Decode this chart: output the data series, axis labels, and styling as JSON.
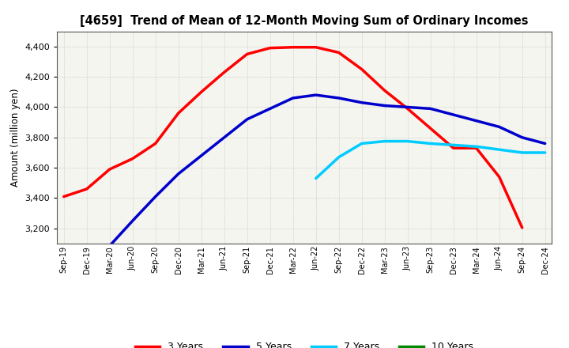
{
  "title": "[4659]  Trend of Mean of 12-Month Moving Sum of Ordinary Incomes",
  "ylabel": "Amount (million yen)",
  "ylim": [
    3100,
    4500
  ],
  "yticks": [
    3200,
    3400,
    3600,
    3800,
    4000,
    4200,
    4400
  ],
  "x_labels": [
    "Sep-19",
    "Dec-19",
    "Mar-20",
    "Jun-20",
    "Sep-20",
    "Dec-20",
    "Mar-21",
    "Jun-21",
    "Sep-21",
    "Dec-21",
    "Mar-22",
    "Jun-22",
    "Sep-22",
    "Dec-22",
    "Mar-23",
    "Jun-23",
    "Sep-23",
    "Dec-23",
    "Mar-24",
    "Jun-24",
    "Sep-24",
    "Dec-24"
  ],
  "series": {
    "3 Years": {
      "color": "#ff0000",
      "data_x": [
        0,
        1,
        2,
        3,
        4,
        5,
        6,
        7,
        8,
        9,
        10,
        11,
        12,
        13,
        14,
        15,
        16,
        17,
        18,
        19,
        20
      ],
      "data_y": [
        3410,
        3460,
        3590,
        3660,
        3760,
        3960,
        4100,
        4230,
        4350,
        4390,
        4395,
        4395,
        4360,
        4250,
        4110,
        3990,
        3860,
        3730,
        3730,
        3540,
        3205
      ]
    },
    "5 Years": {
      "color": "#0000cc",
      "data_x": [
        2,
        3,
        4,
        5,
        6,
        7,
        8,
        9,
        10,
        11,
        12,
        13,
        14,
        15,
        16,
        17,
        18,
        19,
        20,
        21
      ],
      "data_y": [
        3085,
        3250,
        3410,
        3560,
        3680,
        3800,
        3920,
        3990,
        4060,
        4080,
        4060,
        4030,
        4010,
        4000,
        3990,
        3950,
        3910,
        3870,
        3800,
        3760
      ]
    },
    "7 Years": {
      "color": "#00ccff",
      "data_x": [
        11,
        12,
        13,
        14,
        15,
        16,
        17,
        18,
        19,
        20,
        21
      ],
      "data_y": [
        3530,
        3670,
        3760,
        3775,
        3775,
        3760,
        3750,
        3740,
        3720,
        3700,
        3700
      ]
    },
    "10 Years": {
      "color": "#008800",
      "data_x": [],
      "data_y": []
    }
  },
  "legend_labels": [
    "3 Years",
    "5 Years",
    "7 Years",
    "10 Years"
  ],
  "legend_colors": [
    "#ff0000",
    "#0000cc",
    "#00ccff",
    "#008800"
  ],
  "background_color": "#ffffff",
  "plot_bg_color": "#f5f5f0",
  "grid_color": "#888888"
}
